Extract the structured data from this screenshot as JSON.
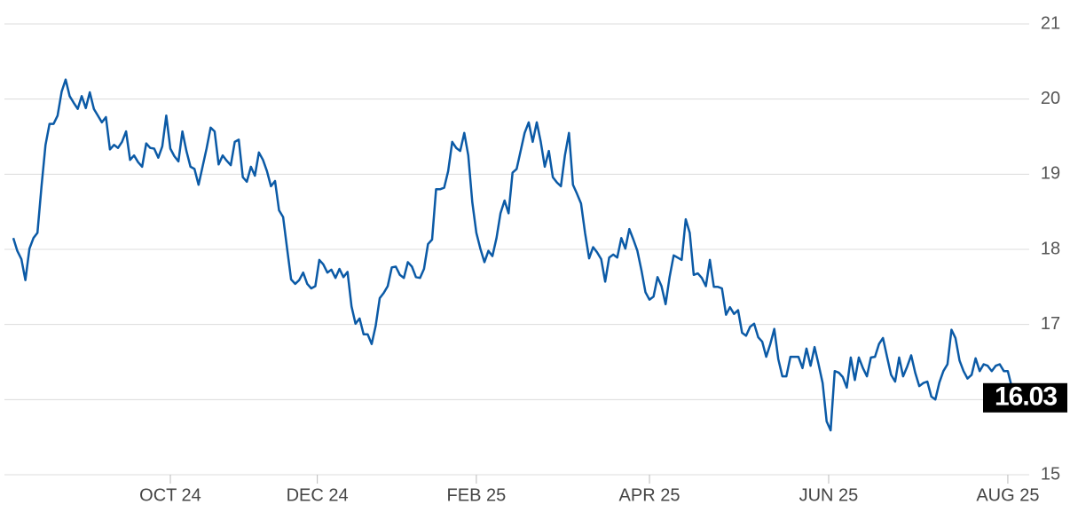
{
  "chart_data": {
    "type": "line",
    "color": "#0b5aa6",
    "values": [
      18.15,
      17.98,
      17.87,
      17.59,
      18.01,
      18.15,
      18.22,
      18.84,
      19.39,
      19.67,
      19.67,
      19.78,
      20.1,
      20.26,
      20.04,
      19.95,
      19.87,
      20.04,
      19.88,
      20.09,
      19.87,
      19.78,
      19.69,
      19.76,
      19.33,
      19.39,
      19.35,
      19.43,
      19.57,
      19.19,
      19.25,
      19.16,
      19.1,
      19.41,
      19.35,
      19.34,
      19.22,
      19.37,
      19.78,
      19.34,
      19.24,
      19.17,
      19.57,
      19.31,
      19.1,
      19.07,
      18.86,
      19.1,
      19.34,
      19.62,
      19.57,
      19.13,
      19.25,
      19.18,
      19.12,
      19.43,
      19.46,
      18.96,
      18.9,
      19.1,
      18.98,
      19.29,
      19.19,
      19.04,
      18.84,
      18.91,
      18.52,
      18.43,
      18.01,
      17.6,
      17.54,
      17.59,
      17.69,
      17.54,
      17.48,
      17.51,
      17.86,
      17.8,
      17.69,
      17.73,
      17.62,
      17.74,
      17.63,
      17.7,
      17.24,
      17.01,
      17.08,
      16.87,
      16.87,
      16.74,
      16.98,
      17.35,
      17.42,
      17.51,
      17.76,
      17.77,
      17.66,
      17.62,
      17.83,
      17.77,
      17.63,
      17.62,
      17.74,
      18.07,
      18.13,
      18.8,
      18.8,
      18.82,
      19.04,
      19.43,
      19.35,
      19.31,
      19.55,
      19.25,
      18.63,
      18.22,
      18.01,
      17.83,
      17.98,
      17.91,
      18.15,
      18.48,
      18.65,
      18.48,
      19.02,
      19.07,
      19.31,
      19.55,
      19.69,
      19.43,
      19.69,
      19.43,
      19.1,
      19.31,
      18.96,
      18.89,
      18.84,
      19.25,
      19.55,
      18.86,
      18.74,
      18.61,
      18.22,
      17.88,
      18.03,
      17.96,
      17.87,
      17.57,
      17.89,
      17.93,
      17.89,
      18.15,
      18.01,
      18.27,
      18.13,
      17.98,
      17.72,
      17.43,
      17.33,
      17.37,
      17.63,
      17.51,
      17.27,
      17.63,
      17.92,
      17.89,
      17.86,
      18.4,
      18.22,
      17.66,
      17.68,
      17.62,
      17.51,
      17.86,
      17.5,
      17.5,
      17.48,
      17.13,
      17.23,
      17.14,
      17.19,
      16.89,
      16.85,
      16.97,
      17.01,
      16.83,
      16.77,
      16.57,
      16.74,
      16.94,
      16.54,
      16.31,
      16.31,
      16.57,
      16.57,
      16.57,
      16.42,
      16.68,
      16.45,
      16.7,
      16.47,
      16.22,
      15.71,
      15.59,
      16.38,
      16.36,
      16.3,
      16.16,
      16.56,
      16.26,
      16.56,
      16.42,
      16.31,
      16.56,
      16.57,
      16.74,
      16.82,
      16.57,
      16.33,
      16.24,
      16.56,
      16.31,
      16.44,
      16.59,
      16.36,
      16.18,
      16.22,
      16.24,
      16.04,
      16.0,
      16.23,
      16.38,
      16.47,
      16.93,
      16.82,
      16.52,
      16.38,
      16.28,
      16.33,
      16.55,
      16.38,
      16.47,
      16.45,
      16.38,
      16.45,
      16.47,
      16.38,
      16.38,
      16.16,
      16.03
    ],
    "xlim": [
      0,
      249
    ],
    "xticks": [
      {
        "value": 39,
        "label": "OCT 24"
      },
      {
        "value": 75.5,
        "label": "DEC 24"
      },
      {
        "value": 115,
        "label": "FEB 25"
      },
      {
        "value": 158,
        "label": "APR 25"
      },
      {
        "value": 202.5,
        "label": "JUN 25"
      },
      {
        "value": 247,
        "label": "AUG 25"
      }
    ],
    "ylim": [
      15,
      21
    ],
    "yticks": [
      15,
      16,
      17,
      18,
      19,
      20,
      21
    ],
    "grid": true
  }
}
